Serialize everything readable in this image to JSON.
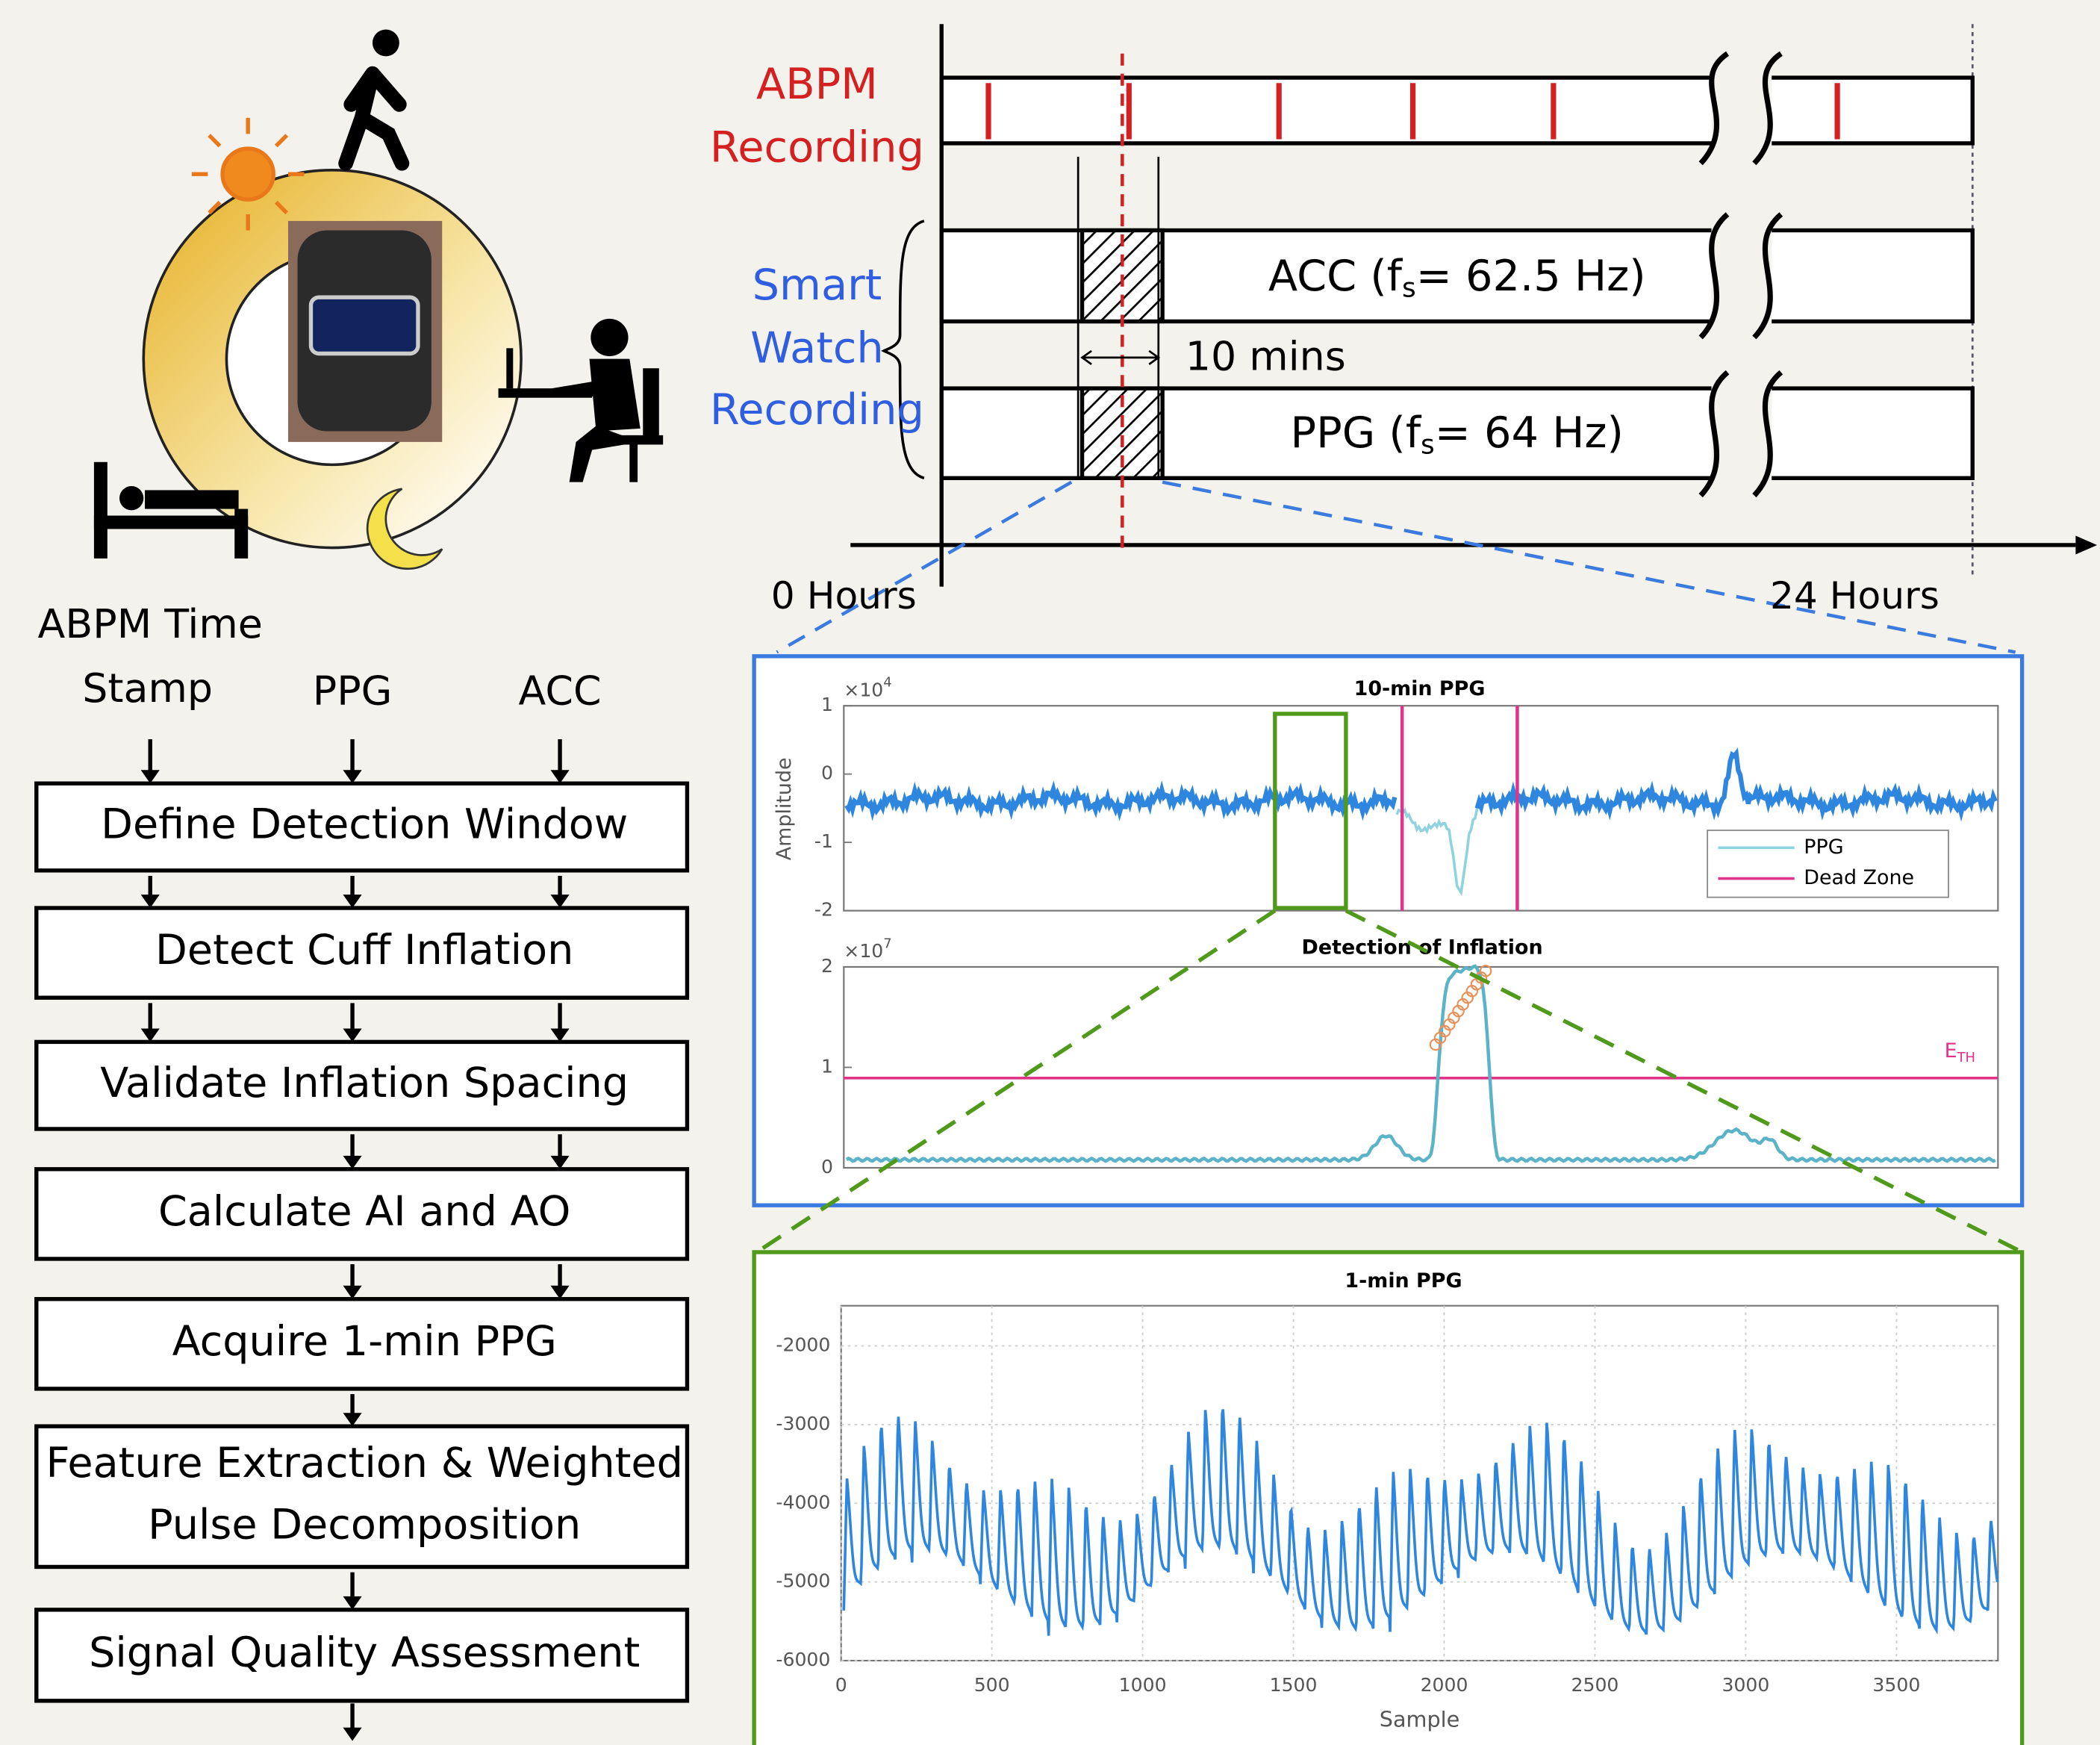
{
  "timeline": {
    "abpm_label": [
      "ABPM",
      "Recording"
    ],
    "smartwatch_label": [
      "Smart",
      "Watch",
      "Recording"
    ],
    "acc": {
      "prefix": "ACC (f",
      "sub": "s",
      "suffix": "= 62.5 Hz)"
    },
    "ppg": {
      "prefix": "PPG (f",
      "sub": "s",
      "suffix": "= 64 Hz)"
    },
    "window_label": "10 mins",
    "start_label": "0 Hours",
    "end_label": "24 Hours"
  },
  "flowchart": {
    "inputs": [
      [
        "ABPM Time",
        "Stamp"
      ],
      [
        "PPG"
      ],
      [
        "ACC"
      ]
    ],
    "steps": [
      [
        "Define Detection Window"
      ],
      [
        "Detect Cuff Inflation"
      ],
      [
        "Validate Inflation Spacing"
      ],
      [
        "Calculate AI and AO"
      ],
      [
        "Acquire 1-min PPG"
      ],
      [
        "Feature Extraction & Weighted",
        "Pulse Decomposition"
      ],
      [
        "Signal Quality Assessment"
      ]
    ]
  },
  "plots": [
    {
      "title": "10-min PPG",
      "ylabel": "Amplitude",
      "multiplier": {
        "base": "×10",
        "exp": "4"
      },
      "yticks": [
        1,
        0,
        -1,
        -2
      ],
      "legend": [
        "PPG",
        "Dead Zone"
      ]
    },
    {
      "title": "Detection of Inflation",
      "multiplier": {
        "base": "×10",
        "exp": "7"
      },
      "yticks": [
        2,
        1,
        0
      ],
      "threshold_label": {
        "base": "E",
        "sub": "TH"
      }
    },
    {
      "title": "1-min PPG",
      "yticks": [
        -2000,
        -3000,
        -4000,
        -5000,
        -6000
      ],
      "xticks": [
        0,
        500,
        1000,
        1500,
        2000,
        2500,
        3000,
        3500
      ],
      "xlabel": "Sample"
    }
  ]
}
